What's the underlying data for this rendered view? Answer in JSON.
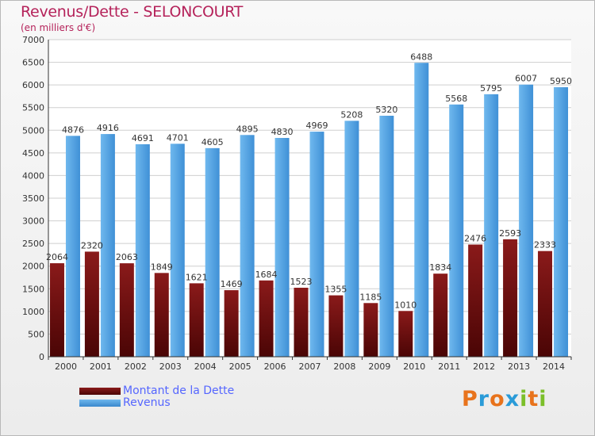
{
  "header": {
    "title": "Revenus/Dette - SELONCOURT",
    "subtitle": "(en milliers d'€)"
  },
  "legend": {
    "dette_label": "Montant de la Dette",
    "revenus_label": "Revenus"
  },
  "logo": {
    "text": "Proxiti",
    "colors": [
      "#e8731c",
      "#2a9bd8",
      "#e8731c",
      "#2a9bd8",
      "#7bbf2a",
      "#e8731c",
      "#7bbf2a"
    ]
  },
  "colors": {
    "dette": "#6e0f0f",
    "revenus": "#4aa3e6",
    "title": "#b5225a",
    "legend_text": "#5566ff"
  },
  "chart_data": {
    "type": "bar",
    "title": "Revenus/Dette - SELONCOURT",
    "subtitle": "(en milliers d'€)",
    "categories": [
      "2000",
      "2001",
      "2002",
      "2003",
      "2004",
      "2005",
      "2006",
      "2007",
      "2008",
      "2009",
      "2010",
      "2011",
      "2012",
      "2013",
      "2014"
    ],
    "series": [
      {
        "name": "Montant de la Dette",
        "values": [
          2064,
          2320,
          2063,
          1849,
          1621,
          1469,
          1684,
          1523,
          1355,
          1185,
          1010,
          1834,
          2476,
          2593,
          2333
        ],
        "labels": [
          "2064",
          "2320",
          "2063",
          "1849",
          "1621",
          "1469",
          "1684",
          "1523",
          "1355",
          "1185",
          "1010",
          "1834",
          "2476",
          "2593",
          "2333"
        ]
      },
      {
        "name": "Revenus",
        "values": [
          4876,
          4916,
          4691,
          4701,
          4605,
          4895,
          4830,
          4969,
          5208,
          5320,
          6488,
          5568,
          5795,
          6007,
          5950
        ],
        "labels": [
          "4876",
          "4916",
          "4691",
          "4701",
          "4605",
          "4895",
          "4830",
          "4969",
          "5208",
          "5320",
          "6488",
          "5568",
          "5795",
          "6007",
          "5950"
        ]
      }
    ],
    "ylim": [
      0,
      7000
    ],
    "yticks": [
      "0",
      "500",
      "1000",
      "1500",
      "2000",
      "2500",
      "3000",
      "3500",
      "4000",
      "4500",
      "5000",
      "5500",
      "6000",
      "6500",
      "7000"
    ],
    "grid": true
  }
}
